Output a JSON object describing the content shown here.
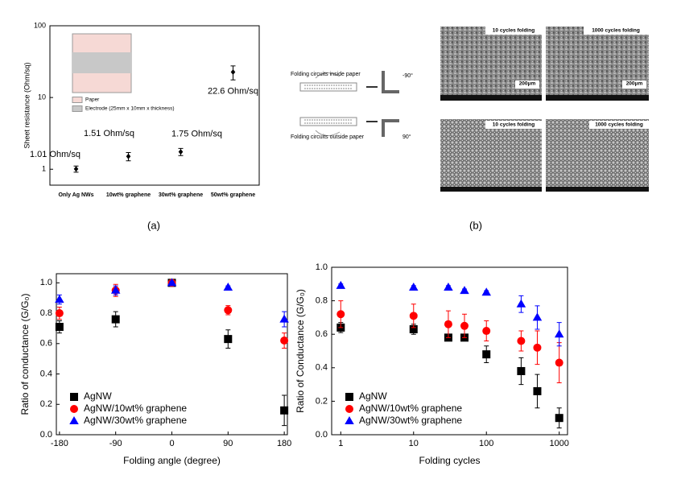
{
  "chart_data": [
    {
      "type": "errorbar",
      "y_label": "Sheet resistance (Ohm/sq)",
      "categories": [
        "Only Ag NWs",
        "10wt% graphene",
        "30wt% graphene",
        "50wt% graphene"
      ],
      "values": [
        1.01,
        1.51,
        1.75,
        22.6
      ],
      "errors": [
        0.1,
        0.2,
        0.2,
        5
      ],
      "value_labels": [
        "1.01 Ohm/sq",
        "1.51 Ohm/sq",
        "1.75 Ohm/sq",
        "22.6 Ohm/sq"
      ],
      "color": "#000000",
      "marker": "diamond",
      "y_log": true,
      "ylim": [
        0.6,
        100
      ],
      "yticks": [
        1,
        10,
        100
      ],
      "inset_legend": [
        {
          "label": "Paper",
          "color": "#f6d9d5"
        },
        {
          "label": "Electrode (25mm x 10mm x thickness)",
          "color": "#c8c8c8"
        }
      ]
    },
    {
      "type": "errorbar",
      "x_label": "Folding angle (degree)",
      "y_label": "Ratio of conductance (G/G₀)",
      "x": [
        -180,
        -90,
        0,
        90,
        180
      ],
      "xlim": [
        -185,
        185
      ],
      "xticks": [
        -180,
        -90,
        0,
        90,
        180
      ],
      "ylim": [
        0,
        1.06
      ],
      "yticks": [
        {
          "value": 0,
          "label": "0.0"
        },
        0.2,
        0.4,
        0.6,
        0.8,
        {
          "value": 1,
          "label": "1.0"
        }
      ],
      "legend": "lower left",
      "series": [
        {
          "name": "AgNW",
          "color": "#000000",
          "marker": "square",
          "values": [
            0.71,
            0.76,
            1.0,
            0.63,
            0.16
          ],
          "errors": [
            0.04,
            0.05,
            0.01,
            0.06,
            0.1
          ]
        },
        {
          "name": "AgNW/10wt% graphene",
          "color": "#ff0000",
          "marker": "circle",
          "values": [
            0.8,
            0.95,
            1.0,
            0.82,
            0.62
          ],
          "errors": [
            0.04,
            0.04,
            0.01,
            0.03,
            0.05
          ]
        },
        {
          "name": "AgNW/30wt% graphene",
          "color": "#0000ff",
          "marker": "triangle",
          "values": [
            0.89,
            0.95,
            1.0,
            0.97,
            0.76
          ],
          "errors": [
            0.03,
            0.03,
            0.01,
            0.01,
            0.05
          ]
        }
      ]
    },
    {
      "type": "errorbar",
      "x_label": "Folding cycles",
      "y_label": "Ratio of Conductance (G/G₀)",
      "x": [
        1,
        10,
        30,
        50,
        100,
        300,
        500,
        1000
      ],
      "x_log": true,
      "xlim": [
        0.75,
        1300
      ],
      "xticks": [
        1,
        10,
        100,
        1000
      ],
      "ylim": [
        0,
        1.0
      ],
      "yticks": [
        {
          "value": 0,
          "label": "0.0"
        },
        0.2,
        0.4,
        0.6,
        0.8,
        {
          "value": 1,
          "label": "1.0"
        }
      ],
      "legend": "lower left",
      "series": [
        {
          "name": "AgNW",
          "color": "#000000",
          "marker": "square",
          "values": [
            0.64,
            0.63,
            0.58,
            0.58,
            0.48,
            0.38,
            0.26,
            0.1
          ],
          "errors": [
            0.03,
            0.03,
            0.02,
            0.02,
            0.05,
            0.08,
            0.1,
            0.06
          ]
        },
        {
          "name": "AgNW/10wt% graphene",
          "color": "#ff0000",
          "marker": "circle",
          "values": [
            0.72,
            0.71,
            0.66,
            0.65,
            0.62,
            0.56,
            0.52,
            0.43
          ],
          "errors": [
            0.08,
            0.07,
            0.08,
            0.07,
            0.06,
            0.06,
            0.1,
            0.12
          ]
        },
        {
          "name": "AgNW/30wt% graphene",
          "color": "#0000ff",
          "marker": "triangle",
          "values": [
            0.89,
            0.88,
            0.88,
            0.86,
            0.85,
            0.78,
            0.7,
            0.6
          ],
          "errors": [
            0.01,
            0.01,
            0.01,
            0.01,
            0.01,
            0.05,
            0.07,
            0.07
          ]
        }
      ]
    }
  ],
  "panel_labels": [
    "(a)",
    "(b)"
  ],
  "diagram": {
    "top_label": "Folding circuits inside paper",
    "top_angle": "-90°",
    "bottom_label": "Folding circuits outside paper",
    "bottom_angle": "90°"
  },
  "sem": {
    "titles": [
      "10 cycles folding",
      "1000 cycles folding",
      "10 cycles folding",
      "1000 cycles folding"
    ],
    "scale_bar": "200μm"
  }
}
